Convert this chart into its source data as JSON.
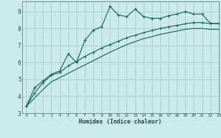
{
  "xlabel": "Humidex (Indice chaleur)",
  "xlim": [
    -0.5,
    23
  ],
  "ylim": [
    3,
    9.6
  ],
  "yticks": [
    3,
    4,
    5,
    6,
    7,
    8,
    9
  ],
  "xticks": [
    0,
    1,
    2,
    3,
    4,
    5,
    6,
    7,
    8,
    9,
    10,
    11,
    12,
    13,
    14,
    15,
    16,
    17,
    18,
    19,
    20,
    21,
    22,
    23
  ],
  "bg_color": "#cceaea",
  "grid_color": "#aacccc",
  "line_color": "#1a6b5a",
  "line1_x": [
    0,
    1,
    2,
    3,
    4,
    5,
    6,
    7,
    8,
    9,
    10,
    11,
    12,
    13,
    14,
    15,
    16,
    17,
    18,
    19,
    20,
    21,
    22,
    23
  ],
  "line1_y": [
    3.4,
    4.5,
    4.9,
    5.3,
    5.5,
    6.5,
    6.0,
    7.3,
    7.9,
    8.1,
    9.3,
    8.8,
    8.7,
    9.15,
    8.7,
    8.6,
    8.6,
    8.75,
    8.85,
    9.0,
    8.85,
    8.85,
    8.3,
    8.3
  ],
  "line2_x": [
    0,
    1,
    2,
    3,
    4,
    5,
    6,
    7,
    8,
    9,
    10,
    11,
    12,
    13,
    14,
    15,
    16,
    17,
    18,
    19,
    20,
    21,
    22,
    23
  ],
  "line2_y": [
    3.4,
    4.2,
    4.8,
    5.25,
    5.4,
    5.8,
    6.05,
    6.35,
    6.6,
    6.85,
    7.05,
    7.25,
    7.45,
    7.6,
    7.75,
    7.88,
    8.0,
    8.1,
    8.18,
    8.28,
    8.35,
    8.35,
    8.28,
    8.28
  ],
  "line3_x": [
    0,
    1,
    2,
    3,
    4,
    5,
    6,
    7,
    8,
    9,
    10,
    11,
    12,
    13,
    14,
    15,
    16,
    17,
    18,
    19,
    20,
    21,
    22,
    23
  ],
  "line3_y": [
    3.4,
    3.9,
    4.4,
    4.85,
    5.1,
    5.35,
    5.6,
    5.85,
    6.1,
    6.35,
    6.6,
    6.82,
    7.05,
    7.22,
    7.4,
    7.52,
    7.65,
    7.75,
    7.85,
    7.95,
    8.0,
    8.0,
    7.95,
    7.95
  ]
}
